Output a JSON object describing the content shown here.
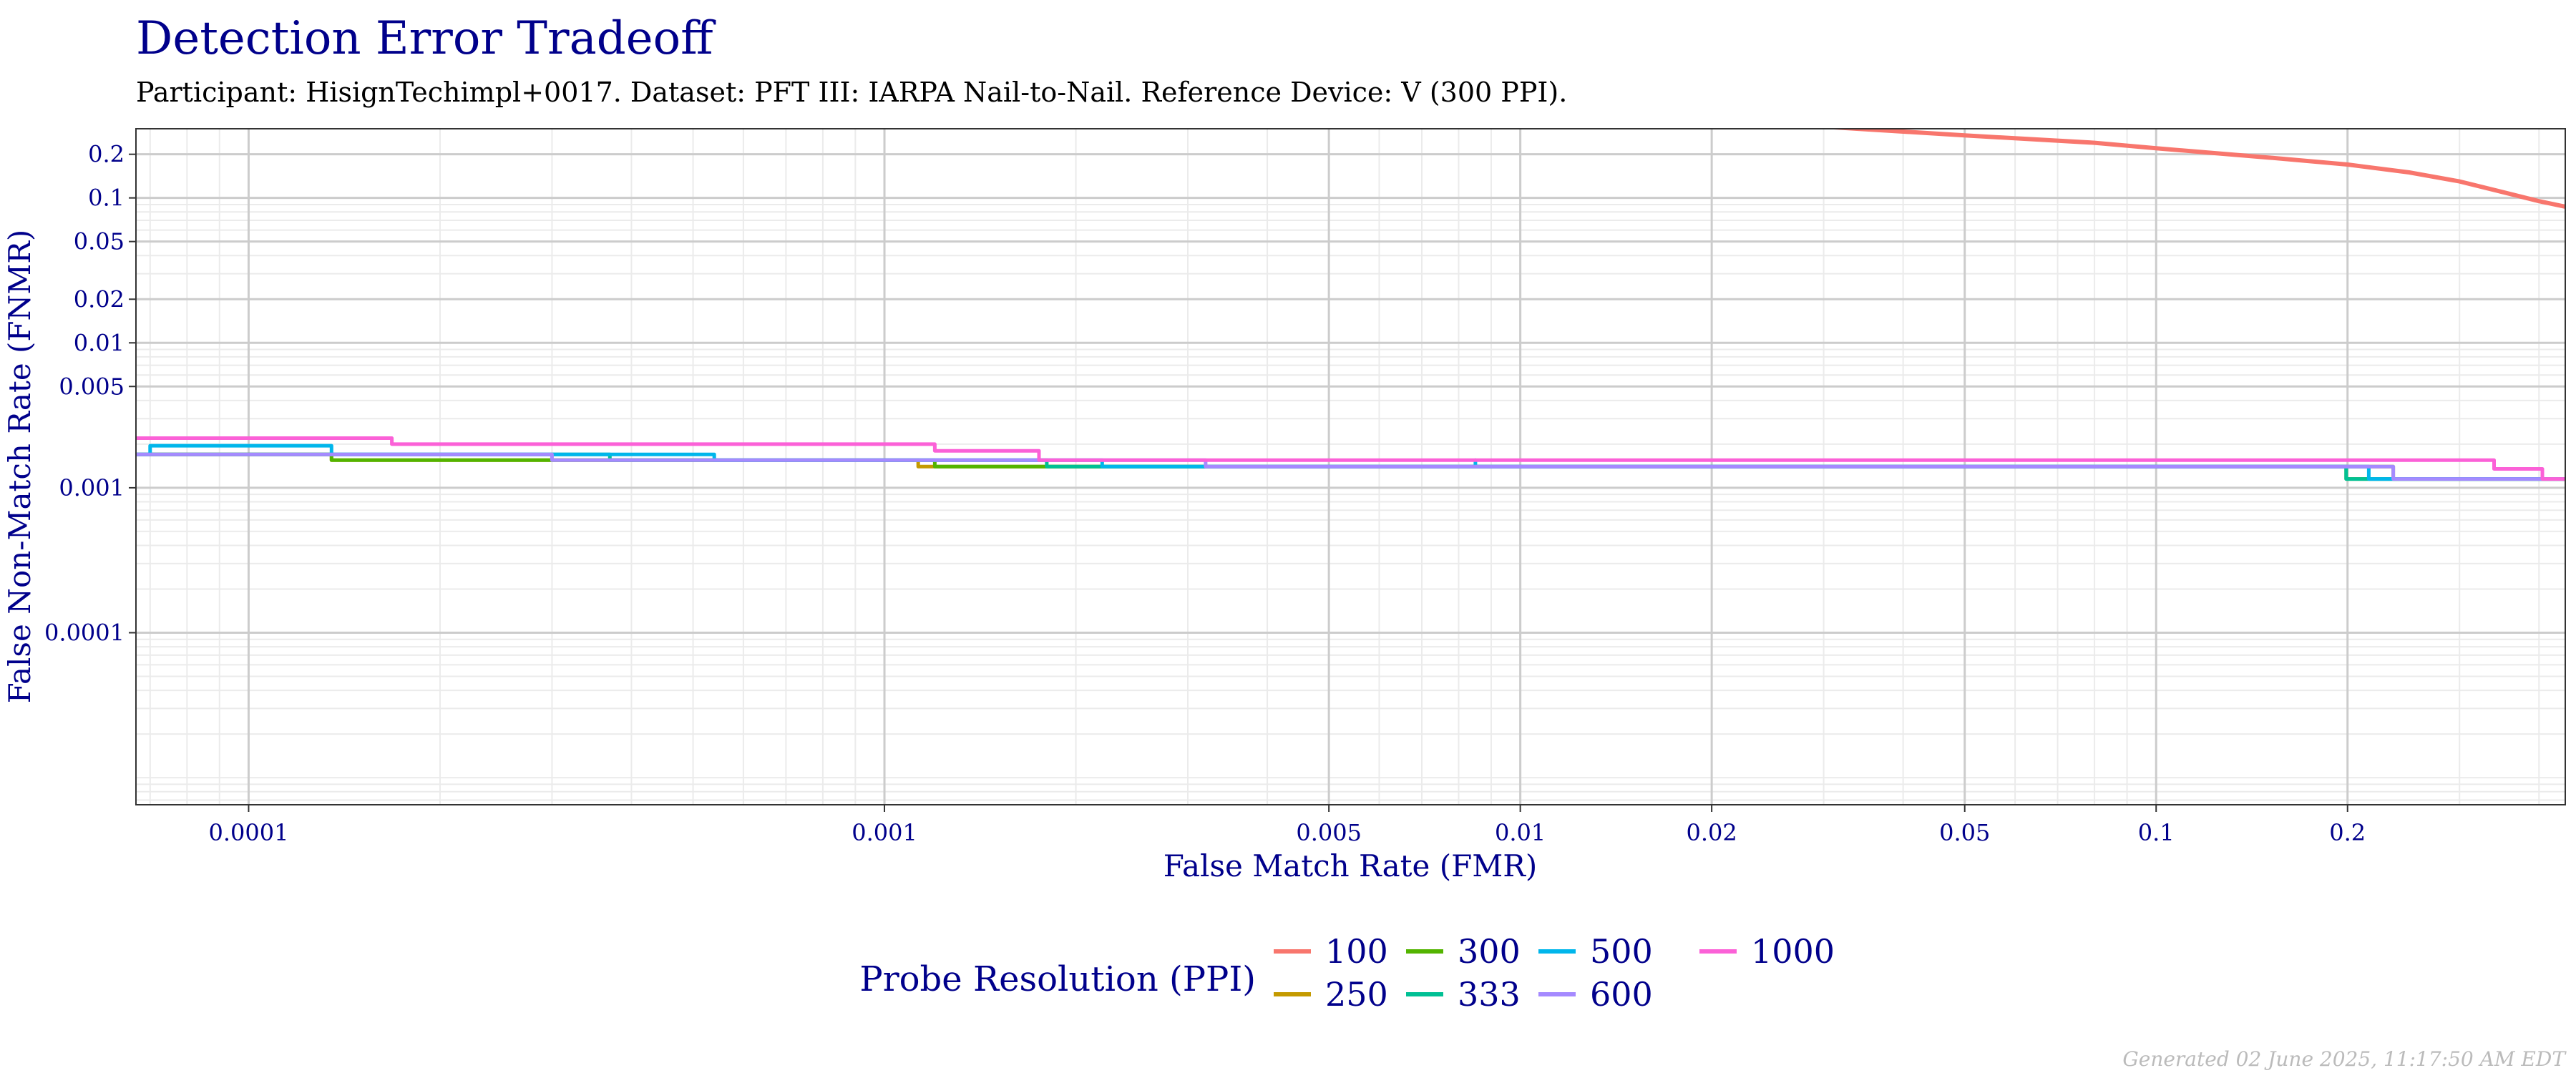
{
  "chart_data": {
    "type": "line",
    "title": "Detection Error Tradeoff",
    "subtitle": "Participant: HisignTechimpl+0017. Dataset: PFT III: IARPA Nail-to-Nail. Reference Device: V (300 PPI).",
    "xlabel": "False Match Rate (FMR)",
    "ylabel": "False Non-Match Rate (FNMR)",
    "x_scale": "log",
    "y_scale": "log",
    "xlim": [
      6.65e-05,
      0.44
    ],
    "ylim": [
      6.5e-06,
      0.3
    ],
    "x_ticks": [
      {
        "value": 0.0001,
        "label": "0.0001"
      },
      {
        "value": 0.001,
        "label": "0.001"
      },
      {
        "value": 0.005,
        "label": "0.005"
      },
      {
        "value": 0.01,
        "label": "0.01"
      },
      {
        "value": 0.02,
        "label": "0.02"
      },
      {
        "value": 0.05,
        "label": "0.05"
      },
      {
        "value": 0.1,
        "label": "0.1"
      },
      {
        "value": 0.2,
        "label": "0.2"
      }
    ],
    "y_ticks": [
      {
        "value": 0.0001,
        "label": "0.0001"
      },
      {
        "value": 0.001,
        "label": "0.001"
      },
      {
        "value": 0.005,
        "label": "0.005"
      },
      {
        "value": 0.01,
        "label": "0.01"
      },
      {
        "value": 0.02,
        "label": "0.02"
      },
      {
        "value": 0.05,
        "label": "0.05"
      },
      {
        "value": 0.1,
        "label": "0.1"
      },
      {
        "value": 0.2,
        "label": "0.2"
      }
    ],
    "grid": true,
    "legend": {
      "title": "Probe Resolution (PPI)",
      "position": "bottom"
    },
    "series": [
      {
        "name": "100",
        "color": "#F8766D",
        "step": false,
        "points": [
          [
            0.03,
            0.31
          ],
          [
            0.05,
            0.27
          ],
          [
            0.08,
            0.24
          ],
          [
            0.1,
            0.22
          ],
          [
            0.15,
            0.19
          ],
          [
            0.2,
            0.17
          ],
          [
            0.25,
            0.15
          ],
          [
            0.3,
            0.13
          ],
          [
            0.35,
            0.11
          ],
          [
            0.4,
            0.095
          ],
          [
            0.44,
            0.087
          ]
        ]
      },
      {
        "name": "250",
        "color": "#C49A00",
        "step": true,
        "points": [
          [
            6.65e-05,
            0.0017
          ],
          [
            0.0001,
            0.0017
          ],
          [
            0.000135,
            0.00155
          ],
          [
            0.0004,
            0.00155
          ],
          [
            0.00113,
            0.0014
          ],
          [
            0.01,
            0.0014
          ],
          [
            0.2,
            0.0014
          ],
          [
            0.236,
            0.00115
          ],
          [
            0.44,
            0.00115
          ]
        ]
      },
      {
        "name": "300",
        "color": "#53B400",
        "step": true,
        "points": [
          [
            6.65e-05,
            0.0017
          ],
          [
            0.0001,
            0.0017
          ],
          [
            0.000135,
            0.00155
          ],
          [
            0.0004,
            0.00155
          ],
          [
            0.0012,
            0.0014
          ],
          [
            0.01,
            0.0014
          ],
          [
            0.196,
            0.0014
          ],
          [
            0.199,
            0.00115
          ],
          [
            0.44,
            0.00115
          ]
        ]
      },
      {
        "name": "333",
        "color": "#00C094",
        "step": true,
        "points": [
          [
            6.65e-05,
            0.0017
          ],
          [
            7e-05,
            0.0017
          ],
          [
            0.0002,
            0.0017
          ],
          [
            0.00037,
            0.00155
          ],
          [
            0.0018,
            0.00155
          ],
          [
            0.0018,
            0.0014
          ],
          [
            0.01,
            0.0014
          ],
          [
            0.199,
            0.0014
          ],
          [
            0.199,
            0.00115
          ],
          [
            0.44,
            0.00115
          ]
        ]
      },
      {
        "name": "500",
        "color": "#00B6EB",
        "step": true,
        "points": [
          [
            6.65e-05,
            0.0017
          ],
          [
            7e-05,
            0.0017
          ],
          [
            7e-05,
            0.00195
          ],
          [
            0.000135,
            0.00195
          ],
          [
            0.000135,
            0.0017
          ],
          [
            0.00037,
            0.0017
          ],
          [
            0.00037,
            0.0017
          ],
          [
            0.00054,
            0.0017
          ],
          [
            0.00054,
            0.00155
          ],
          [
            0.0022,
            0.00155
          ],
          [
            0.0022,
            0.0014
          ],
          [
            0.0085,
            0.0014
          ],
          [
            0.0085,
            0.00155
          ],
          [
            0.0085,
            0.0014
          ],
          [
            0.216,
            0.0014
          ],
          [
            0.216,
            0.00115
          ],
          [
            0.44,
            0.00115
          ]
        ]
      },
      {
        "name": "600",
        "color": "#A58AFF",
        "step": true,
        "points": [
          [
            6.65e-05,
            0.0017
          ],
          [
            0.0001,
            0.0017
          ],
          [
            0.0003,
            0.0017
          ],
          [
            0.0003,
            0.00155
          ],
          [
            0.0032,
            0.00155
          ],
          [
            0.0032,
            0.0014
          ],
          [
            0.01,
            0.0014
          ],
          [
            0.236,
            0.0014
          ],
          [
            0.236,
            0.00115
          ],
          [
            0.44,
            0.00115
          ]
        ]
      },
      {
        "name": "1000",
        "color": "#FB61D7",
        "step": true,
        "points": [
          [
            6.65e-05,
            0.0022
          ],
          [
            0.000168,
            0.0022
          ],
          [
            0.000168,
            0.002
          ],
          [
            0.0012,
            0.002
          ],
          [
            0.0012,
            0.0018
          ],
          [
            0.00175,
            0.0018
          ],
          [
            0.00175,
            0.00155
          ],
          [
            0.34,
            0.00155
          ],
          [
            0.34,
            0.00135
          ],
          [
            0.405,
            0.00135
          ],
          [
            0.405,
            0.00115
          ],
          [
            0.44,
            0.00115
          ]
        ]
      }
    ]
  },
  "footer": {
    "generated": "Generated 02 June 2025, 11:17:50 AM EDT"
  }
}
